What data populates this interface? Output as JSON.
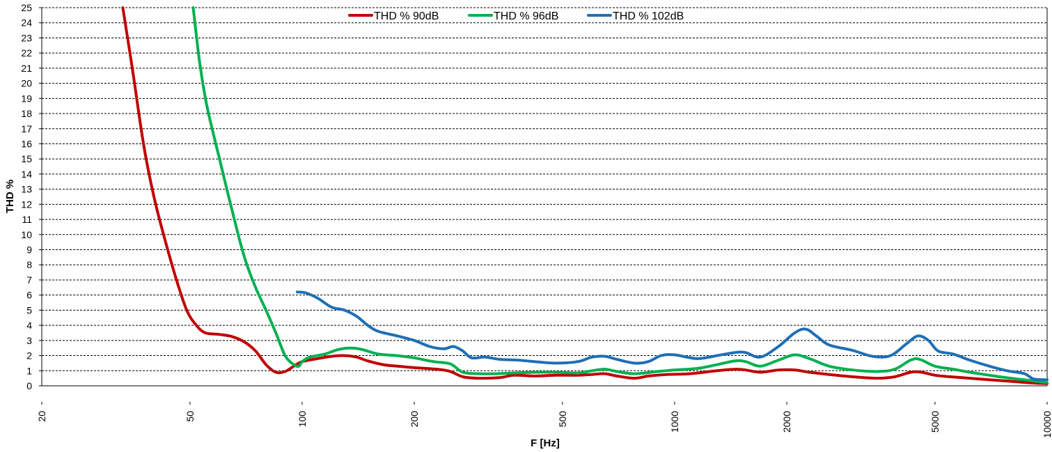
{
  "chart_data": {
    "type": "line",
    "xlabel": "F [Hz]",
    "ylabel": "THD %",
    "xscale": "log",
    "xlim": [
      20,
      10000
    ],
    "ylim": [
      0,
      25
    ],
    "grid": "horizontal dashed",
    "legend_position": "top-center",
    "x_ticks": [
      "20",
      "50",
      "100",
      "200",
      "500",
      "1000",
      "2000",
      "5000",
      "10000"
    ],
    "y_ticks": [
      "0",
      "1",
      "2",
      "3",
      "4",
      "5",
      "6",
      "7",
      "8",
      "9",
      "10",
      "11",
      "12",
      "13",
      "14",
      "15",
      "16",
      "17",
      "18",
      "19",
      "20",
      "21",
      "22",
      "23",
      "24",
      "25"
    ],
    "series": [
      {
        "name": "THD % 90dB",
        "color": "#c00000",
        "points": [
          [
            33,
            25
          ],
          [
            35,
            21
          ],
          [
            37.5,
            16
          ],
          [
            40,
            12.5
          ],
          [
            43,
            9.5
          ],
          [
            46,
            7
          ],
          [
            49,
            5
          ],
          [
            52,
            4
          ],
          [
            55,
            3.5
          ],
          [
            60,
            3.4
          ],
          [
            65,
            3.25
          ],
          [
            70,
            2.9
          ],
          [
            75,
            2.3
          ],
          [
            80,
            1.4
          ],
          [
            85,
            0.9
          ],
          [
            90,
            0.95
          ],
          [
            95,
            1.3
          ],
          [
            100,
            1.6
          ],
          [
            110,
            1.8
          ],
          [
            120,
            1.95
          ],
          [
            130,
            2.0
          ],
          [
            140,
            1.9
          ],
          [
            150,
            1.65
          ],
          [
            165,
            1.4
          ],
          [
            180,
            1.3
          ],
          [
            200,
            1.2
          ],
          [
            230,
            1.1
          ],
          [
            250,
            0.95
          ],
          [
            270,
            0.6
          ],
          [
            300,
            0.5
          ],
          [
            340,
            0.55
          ],
          [
            370,
            0.7
          ],
          [
            420,
            0.65
          ],
          [
            480,
            0.7
          ],
          [
            550,
            0.7
          ],
          [
            600,
            0.75
          ],
          [
            650,
            0.8
          ],
          [
            700,
            0.65
          ],
          [
            780,
            0.5
          ],
          [
            850,
            0.65
          ],
          [
            950,
            0.75
          ],
          [
            1100,
            0.8
          ],
          [
            1300,
            1.0
          ],
          [
            1450,
            1.1
          ],
          [
            1550,
            1.05
          ],
          [
            1700,
            0.9
          ],
          [
            1900,
            1.05
          ],
          [
            2100,
            1.05
          ],
          [
            2300,
            0.9
          ],
          [
            2600,
            0.75
          ],
          [
            3000,
            0.6
          ],
          [
            3500,
            0.5
          ],
          [
            3900,
            0.6
          ],
          [
            4300,
            0.9
          ],
          [
            4600,
            0.9
          ],
          [
            5000,
            0.7
          ],
          [
            5500,
            0.6
          ],
          [
            6200,
            0.5
          ],
          [
            7000,
            0.4
          ],
          [
            8000,
            0.3
          ],
          [
            9000,
            0.2
          ],
          [
            10000,
            0.15
          ]
        ]
      },
      {
        "name": "THD % 96dB",
        "color": "#00b050",
        "points": [
          [
            51,
            25
          ],
          [
            53,
            21.5
          ],
          [
            55.5,
            18.5
          ],
          [
            60,
            15
          ],
          [
            65,
            11.5
          ],
          [
            70,
            8.5
          ],
          [
            75,
            6.5
          ],
          [
            80,
            5
          ],
          [
            85,
            3.5
          ],
          [
            90,
            2
          ],
          [
            95,
            1.4
          ],
          [
            98,
            1.3
          ],
          [
            100,
            1.6
          ],
          [
            105,
            1.9
          ],
          [
            115,
            2.1
          ],
          [
            125,
            2.4
          ],
          [
            135,
            2.5
          ],
          [
            145,
            2.4
          ],
          [
            160,
            2.1
          ],
          [
            180,
            2.0
          ],
          [
            200,
            1.85
          ],
          [
            225,
            1.6
          ],
          [
            250,
            1.45
          ],
          [
            270,
            0.9
          ],
          [
            300,
            0.8
          ],
          [
            330,
            0.8
          ],
          [
            370,
            0.85
          ],
          [
            420,
            0.9
          ],
          [
            480,
            0.9
          ],
          [
            550,
            0.85
          ],
          [
            600,
            1.0
          ],
          [
            650,
            1.1
          ],
          [
            700,
            0.95
          ],
          [
            780,
            0.8
          ],
          [
            900,
            0.95
          ],
          [
            1000,
            1.05
          ],
          [
            1150,
            1.15
          ],
          [
            1300,
            1.4
          ],
          [
            1450,
            1.65
          ],
          [
            1550,
            1.6
          ],
          [
            1700,
            1.3
          ],
          [
            1900,
            1.7
          ],
          [
            2100,
            2.05
          ],
          [
            2300,
            1.8
          ],
          [
            2600,
            1.3
          ],
          [
            3000,
            1.05
          ],
          [
            3500,
            0.95
          ],
          [
            3900,
            1.1
          ],
          [
            4300,
            1.7
          ],
          [
            4550,
            1.75
          ],
          [
            5000,
            1.3
          ],
          [
            5600,
            1.1
          ],
          [
            6200,
            0.9
          ],
          [
            7000,
            0.7
          ],
          [
            8000,
            0.5
          ],
          [
            9000,
            0.35
          ],
          [
            10000,
            0.2
          ]
        ]
      },
      {
        "name": "THD % 102dB",
        "color": "#1f6fb5",
        "points": [
          [
            97,
            6.2
          ],
          [
            102,
            6.15
          ],
          [
            110,
            5.8
          ],
          [
            120,
            5.2
          ],
          [
            130,
            5.0
          ],
          [
            140,
            4.6
          ],
          [
            150,
            4.0
          ],
          [
            160,
            3.6
          ],
          [
            180,
            3.3
          ],
          [
            200,
            3.0
          ],
          [
            220,
            2.6
          ],
          [
            240,
            2.45
          ],
          [
            255,
            2.6
          ],
          [
            270,
            2.3
          ],
          [
            285,
            1.85
          ],
          [
            310,
            1.9
          ],
          [
            340,
            1.75
          ],
          [
            380,
            1.7
          ],
          [
            420,
            1.6
          ],
          [
            480,
            1.5
          ],
          [
            550,
            1.6
          ],
          [
            600,
            1.9
          ],
          [
            650,
            1.95
          ],
          [
            700,
            1.75
          ],
          [
            780,
            1.5
          ],
          [
            850,
            1.6
          ],
          [
            920,
            2.0
          ],
          [
            1000,
            2.05
          ],
          [
            1150,
            1.8
          ],
          [
            1300,
            2.0
          ],
          [
            1450,
            2.2
          ],
          [
            1550,
            2.2
          ],
          [
            1700,
            1.9
          ],
          [
            1900,
            2.6
          ],
          [
            2100,
            3.5
          ],
          [
            2250,
            3.75
          ],
          [
            2400,
            3.3
          ],
          [
            2600,
            2.7
          ],
          [
            3000,
            2.35
          ],
          [
            3400,
            1.95
          ],
          [
            3800,
            2.0
          ],
          [
            4200,
            2.8
          ],
          [
            4500,
            3.3
          ],
          [
            4800,
            3.0
          ],
          [
            5100,
            2.3
          ],
          [
            5600,
            2.1
          ],
          [
            6200,
            1.7
          ],
          [
            7000,
            1.3
          ],
          [
            7800,
            1.0
          ],
          [
            8700,
            0.8
          ],
          [
            9200,
            0.45
          ],
          [
            10000,
            0.4
          ]
        ]
      }
    ]
  }
}
